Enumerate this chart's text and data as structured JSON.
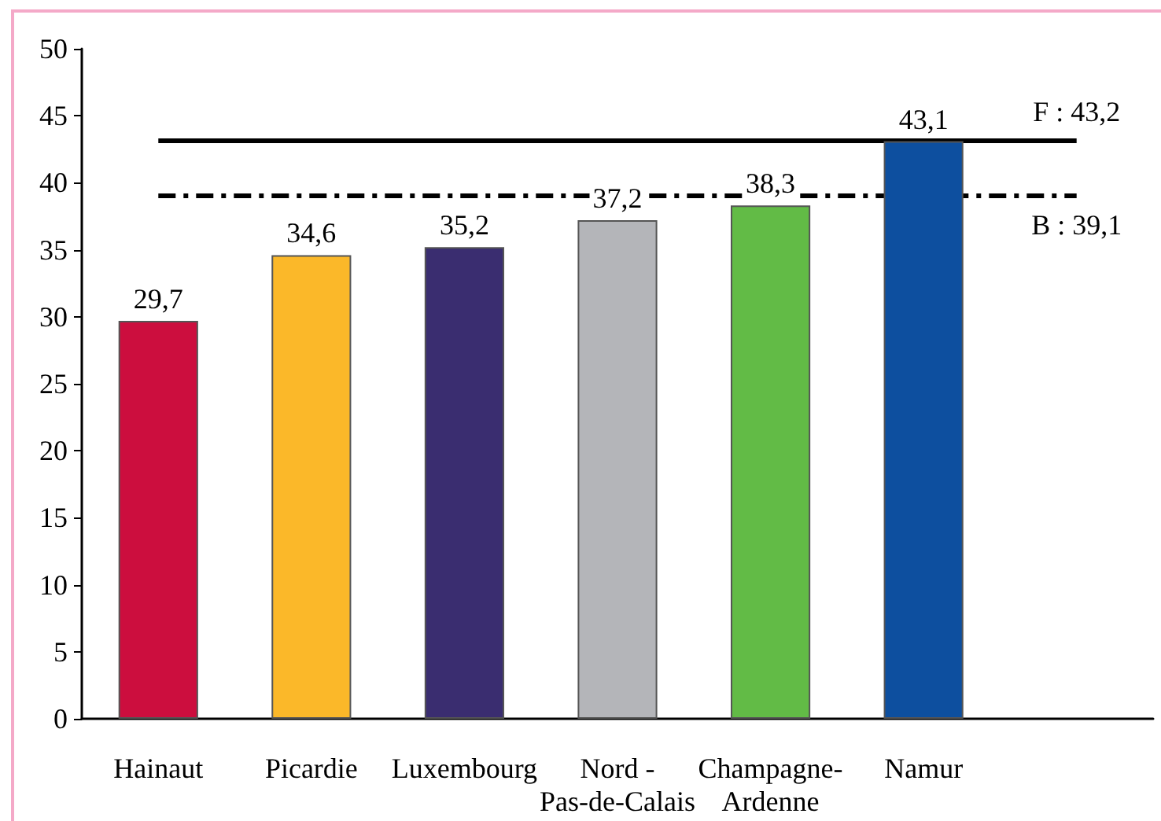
{
  "chart_data": {
    "type": "bar",
    "categories": [
      "Hainaut",
      "Picardie",
      "Luxembourg",
      "Nord -\nPas-de-Calais",
      "Champagne-\nArdenne",
      "Namur",
      null
    ],
    "values": [
      29.7,
      34.6,
      35.2,
      37.2,
      38.3,
      43.1,
      null
    ],
    "value_labels": [
      "29,7",
      "34,6",
      "35,2",
      "37,2",
      "38,3",
      "43,1",
      null
    ],
    "colors": [
      "#cc0e3e",
      "#fbb829",
      "#3a2d70",
      "#b4b5b9",
      "#62bb46",
      "#0d4f9f",
      null
    ],
    "ylim": [
      0,
      50
    ],
    "yticks": [
      0,
      5,
      10,
      15,
      20,
      25,
      30,
      35,
      40,
      45,
      50
    ],
    "grid": false,
    "ref_lines": [
      {
        "axis": "y",
        "value": 43.2,
        "label": "F : 43,2",
        "color": "#000000",
        "line_style": "solid"
      },
      {
        "axis": "y",
        "value": 39.1,
        "label": "B : 39,1",
        "color": "#000000",
        "line_style": "dashdot"
      }
    ]
  }
}
